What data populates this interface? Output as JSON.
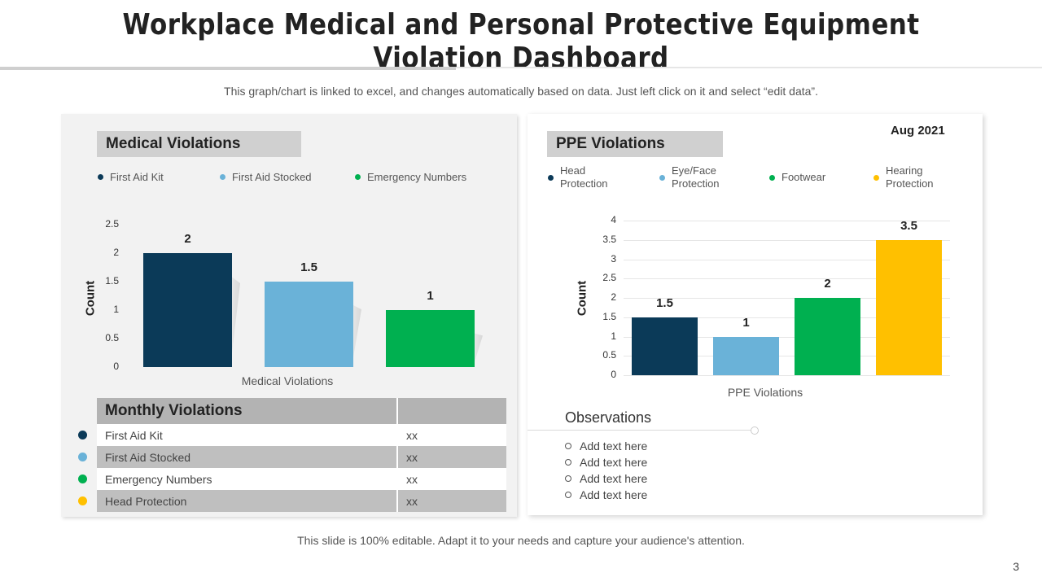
{
  "title": "Workplace Medical and Personal Protective Equipment Violation Dashboard",
  "subtitle": "This graph/chart is linked to excel, and changes automatically based on data. Just left click on it and select “edit data”.",
  "footer": "This slide is 100% editable. Adapt it to your needs and capture your audience's attention.",
  "page_number": "3",
  "date": "Aug 2021",
  "medical": {
    "heading": "Medical Violations",
    "legend": [
      {
        "label": "First Aid Kit",
        "color": "#0b3a58"
      },
      {
        "label": "First Aid Stocked",
        "color": "#6ab2d8"
      },
      {
        "label": "Emergency Numbers",
        "color": "#00b050"
      }
    ]
  },
  "ppe": {
    "heading": "PPE Violations",
    "legend": [
      {
        "label_line1": "Head",
        "label_line2": "Protection",
        "color": "#0b3a58"
      },
      {
        "label_line1": "Eye/Face",
        "label_line2": "Protection",
        "color": "#6ab2d8"
      },
      {
        "label_line1": "Footwear",
        "label_line2": "",
        "color": "#00b050"
      },
      {
        "label_line1": "Hearing",
        "label_line2": "Protection",
        "color": "#ffc000"
      }
    ]
  },
  "monthly": {
    "header": "Monthly Violations",
    "header_value": "",
    "rows": [
      {
        "label": "First Aid Kit",
        "value": "xx",
        "color": "#0b3a58"
      },
      {
        "label": "First Aid Stocked",
        "value": "xx",
        "color": "#6ab2d8"
      },
      {
        "label": "Emergency Numbers",
        "value": "xx",
        "color": "#00b050"
      },
      {
        "label": "Head Protection",
        "value": "xx",
        "color": "#ffc000"
      }
    ]
  },
  "observations": {
    "title": "Observations",
    "items": [
      "Add text here",
      "Add text here",
      "Add text here",
      "Add text here"
    ]
  },
  "chart_data": [
    {
      "type": "bar",
      "title": "Medical Violations",
      "categories": [
        "First Aid Kit",
        "First Aid Stocked",
        "Emergency Numbers"
      ],
      "values": [
        2,
        1.5,
        1
      ],
      "colors": [
        "#0b3a58",
        "#6ab2d8",
        "#00b050"
      ],
      "xlabel": "Medical Violations",
      "ylabel": "Count",
      "ylim": [
        0,
        2.5
      ],
      "yticks": [
        "0",
        "0.5",
        "1",
        "1.5",
        "2",
        "2.5"
      ],
      "data_labels": [
        "2",
        "1.5",
        "1"
      ]
    },
    {
      "type": "bar",
      "title": "PPE Violations",
      "categories": [
        "Head Protection",
        "Eye/Face Protection",
        "Footwear",
        "Hearing Protection"
      ],
      "values": [
        1.5,
        1,
        2,
        3.5
      ],
      "colors": [
        "#0b3a58",
        "#6ab2d8",
        "#00b050",
        "#ffc000"
      ],
      "xlabel": "PPE Violations",
      "ylabel": "Count",
      "ylim": [
        0,
        4
      ],
      "yticks": [
        "0",
        "0.5",
        "1",
        "1.5",
        "2",
        "2.5",
        "3",
        "3.5",
        "4"
      ],
      "data_labels": [
        "1.5",
        "1",
        "2",
        "3.5"
      ]
    }
  ]
}
